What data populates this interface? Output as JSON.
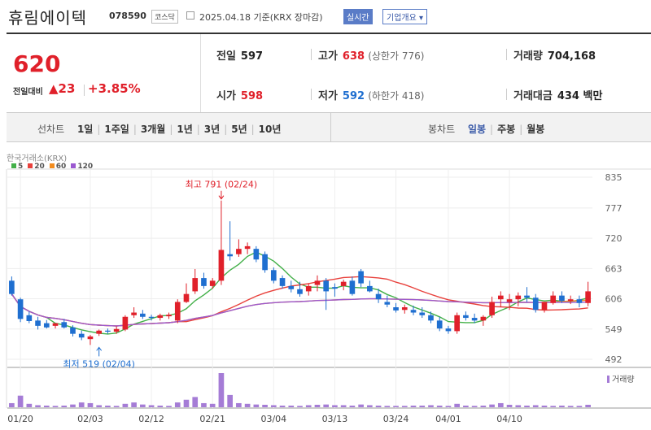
{
  "header": {
    "stock_name": "휴림에이텍",
    "code": "078590",
    "market": "코스닥",
    "date_text": "2025.04.18 기준(KRX 장마감)",
    "realtime_btn": "실시간",
    "info_btn": "기업개요 ▾"
  },
  "price": {
    "current": "620",
    "change_label": "전일대비",
    "change": "▲23",
    "change_pct": "+3.85%"
  },
  "stats": {
    "prev_close_label": "전일",
    "prev_close": "597",
    "high_label": "고가",
    "high": "638",
    "upper_limit": "(상한가 776)",
    "volume_label": "거래량",
    "volume": "704,168",
    "open_label": "시가",
    "open": "598",
    "low_label": "저가",
    "low": "592",
    "lower_limit": "(하한가 418)",
    "turnover_label": "거래대금",
    "turnover": "434 백만"
  },
  "line_tabs": {
    "title": "선차트",
    "options": [
      "1일",
      "1주일",
      "3개월",
      "1년",
      "3년",
      "5년",
      "10년"
    ]
  },
  "candle_tabs": {
    "title": "봉차트",
    "options": [
      "일봉",
      "주봉",
      "월봉"
    ],
    "selected": "일봉"
  },
  "colors": {
    "up": "#e0202a",
    "down": "#1f6fd0",
    "ma5": "#43b049",
    "ma20": "#e8413c",
    "ma60": "#f28c1e",
    "ma120": "#9b59d0",
    "volume": "#a57cd6"
  },
  "chart_data": {
    "type": "candlestick",
    "exchange_label": "한국거래소(KRX)",
    "ma_legend": [
      "5",
      "20",
      "60",
      "120"
    ],
    "y_ticks": [
      835,
      777,
      720,
      663,
      606,
      549,
      492
    ],
    "ylim": [
      492,
      835
    ],
    "x_ticks": [
      "01/20",
      "02/03",
      "02/12",
      "02/21",
      "03/04",
      "03/13",
      "03/24",
      "04/01",
      "04/10"
    ],
    "x_tick_index": [
      1,
      9,
      16,
      23,
      30,
      37,
      44,
      50,
      57
    ],
    "annotations": {
      "max_label": "최고 791 (02/24)",
      "max_value": 791,
      "max_index": 24,
      "min_label": "최저 519 (02/04)",
      "min_value": 519,
      "min_index": 10
    },
    "volume_label": "거래량",
    "candles": [
      [
        640,
        648,
        612,
        615
      ],
      [
        605,
        608,
        562,
        568
      ],
      [
        575,
        582,
        560,
        564
      ],
      [
        565,
        572,
        548,
        555
      ],
      [
        560,
        566,
        550,
        552
      ],
      [
        555,
        560,
        550,
        560
      ],
      [
        562,
        568,
        550,
        552
      ],
      [
        552,
        556,
        535,
        540
      ],
      [
        540,
        546,
        528,
        533
      ],
      [
        530,
        538,
        519,
        535
      ],
      [
        540,
        548,
        536,
        546
      ],
      [
        546,
        550,
        540,
        544
      ],
      [
        544,
        554,
        540,
        549
      ],
      [
        548,
        575,
        545,
        572
      ],
      [
        575,
        590,
        570,
        580
      ],
      [
        578,
        585,
        568,
        572
      ],
      [
        572,
        576,
        565,
        570
      ],
      [
        570,
        578,
        565,
        575
      ],
      [
        573,
        580,
        568,
        576
      ],
      [
        565,
        605,
        560,
        600
      ],
      [
        600,
        635,
        598,
        615
      ],
      [
        620,
        662,
        615,
        645
      ],
      [
        645,
        655,
        625,
        630
      ],
      [
        630,
        645,
        625,
        640
      ],
      [
        640,
        791,
        632,
        698
      ],
      [
        690,
        752,
        678,
        686
      ],
      [
        690,
        718,
        685,
        700
      ],
      [
        700,
        712,
        690,
        705
      ],
      [
        700,
        705,
        675,
        680
      ],
      [
        690,
        695,
        655,
        660
      ],
      [
        660,
        665,
        635,
        640
      ],
      [
        645,
        650,
        625,
        630
      ],
      [
        630,
        640,
        618,
        624
      ],
      [
        624,
        638,
        610,
        615
      ],
      [
        620,
        635,
        612,
        630
      ],
      [
        632,
        650,
        620,
        640
      ],
      [
        640,
        645,
        585,
        620
      ],
      [
        628,
        635,
        610,
        625
      ],
      [
        630,
        642,
        622,
        638
      ],
      [
        640,
        648,
        612,
        615
      ],
      [
        658,
        662,
        628,
        635
      ],
      [
        630,
        640,
        618,
        620
      ],
      [
        615,
        625,
        598,
        605
      ],
      [
        600,
        612,
        590,
        595
      ],
      [
        590,
        598,
        580,
        584
      ],
      [
        585,
        595,
        578,
        590
      ],
      [
        585,
        593,
        575,
        580
      ],
      [
        580,
        590,
        570,
        575
      ],
      [
        575,
        582,
        560,
        565
      ],
      [
        565,
        572,
        545,
        550
      ],
      [
        550,
        555,
        540,
        545
      ],
      [
        545,
        580,
        540,
        575
      ],
      [
        575,
        582,
        565,
        570
      ],
      [
        570,
        578,
        560,
        565
      ],
      [
        565,
        575,
        555,
        572
      ],
      [
        575,
        610,
        570,
        600
      ],
      [
        605,
        620,
        590,
        612
      ],
      [
        600,
        615,
        585,
        605
      ],
      [
        605,
        618,
        592,
        612
      ],
      [
        612,
        628,
        600,
        608
      ],
      [
        608,
        615,
        580,
        585
      ],
      [
        585,
        600,
        580,
        600
      ],
      [
        598,
        620,
        595,
        612
      ],
      [
        612,
        620,
        598,
        602
      ],
      [
        602,
        612,
        596,
        605
      ],
      [
        605,
        612,
        590,
        598
      ],
      [
        598,
        638,
        592,
        620
      ]
    ],
    "volumes": [
      30,
      85,
      25,
      15,
      12,
      10,
      12,
      20,
      35,
      30,
      15,
      12,
      10,
      25,
      35,
      20,
      15,
      12,
      10,
      35,
      55,
      75,
      30,
      25,
      250,
      90,
      30,
      25,
      20,
      18,
      15,
      12,
      12,
      10,
      15,
      18,
      20,
      15,
      15,
      12,
      20,
      15,
      12,
      10,
      10,
      10,
      12,
      12,
      15,
      12,
      10,
      25,
      12,
      10,
      12,
      20,
      30,
      18,
      15,
      12,
      15,
      12,
      10,
      12,
      10,
      10,
      18
    ]
  }
}
